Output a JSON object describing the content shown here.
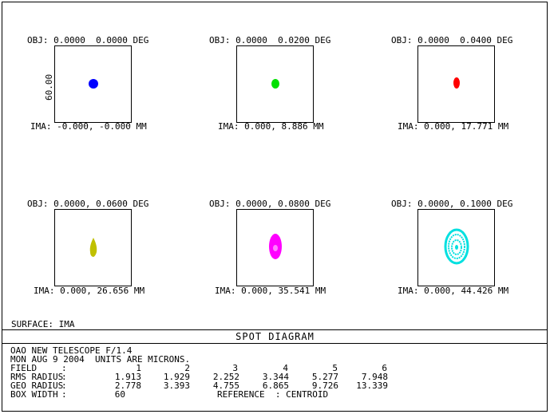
{
  "panels": [
    {
      "obj": "OBJ: 0.0000  0.0000 DEG",
      "ima": "IMA: -0.000, -0.000 MM",
      "color": "#0000ff"
    },
    {
      "obj": "OBJ: 0.0000  0.0200 DEG",
      "ima": "IMA: 0.000, 8.886 MM",
      "color": "#00e000"
    },
    {
      "obj": "OBJ: 0.0000  0.0400 DEG",
      "ima": "IMA: 0.000, 17.771 MM",
      "color": "#ff0000"
    },
    {
      "obj": "OBJ: 0.0000, 0.0600 DEG",
      "ima": "IMA: 0.000, 26.656 MM",
      "color": "#c0c000"
    },
    {
      "obj": "OBJ: 0.0000, 0.0800 DEG",
      "ima": "IMA: 0.000, 35.541 MM",
      "color": "#ff00ff"
    },
    {
      "obj": "OBJ: 0.0000, 0.1000 DEG",
      "ima": "IMA: 0.000, 44.426 MM",
      "color": "#00e0e0"
    }
  ],
  "scale_label": "60.00",
  "surface": "SURFACE: IMA",
  "title": "SPOT DIAGRAM",
  "info": {
    "line1": "OAO NEW TELESCOPE F/1.4",
    "line2": "MON AUG 9 2004  UNITS ARE MICRONS."
  },
  "table": {
    "field_label": "FIELD",
    "fields": [
      "1",
      "2",
      "3",
      "4",
      "5",
      "6"
    ],
    "rms_label": "RMS RADIUS",
    "rms": [
      "1.913",
      "1.929",
      "2.252",
      "3.344",
      "5.277",
      "7.948"
    ],
    "geo_label": "GEO RADIUS",
    "geo": [
      "2.778",
      "3.393",
      "4.755",
      "6.865",
      "9.726",
      "13.339"
    ],
    "box_label": "BOX WIDTH",
    "box_value": "60",
    "reference": "REFERENCE  : CENTROID"
  },
  "colon": ":"
}
